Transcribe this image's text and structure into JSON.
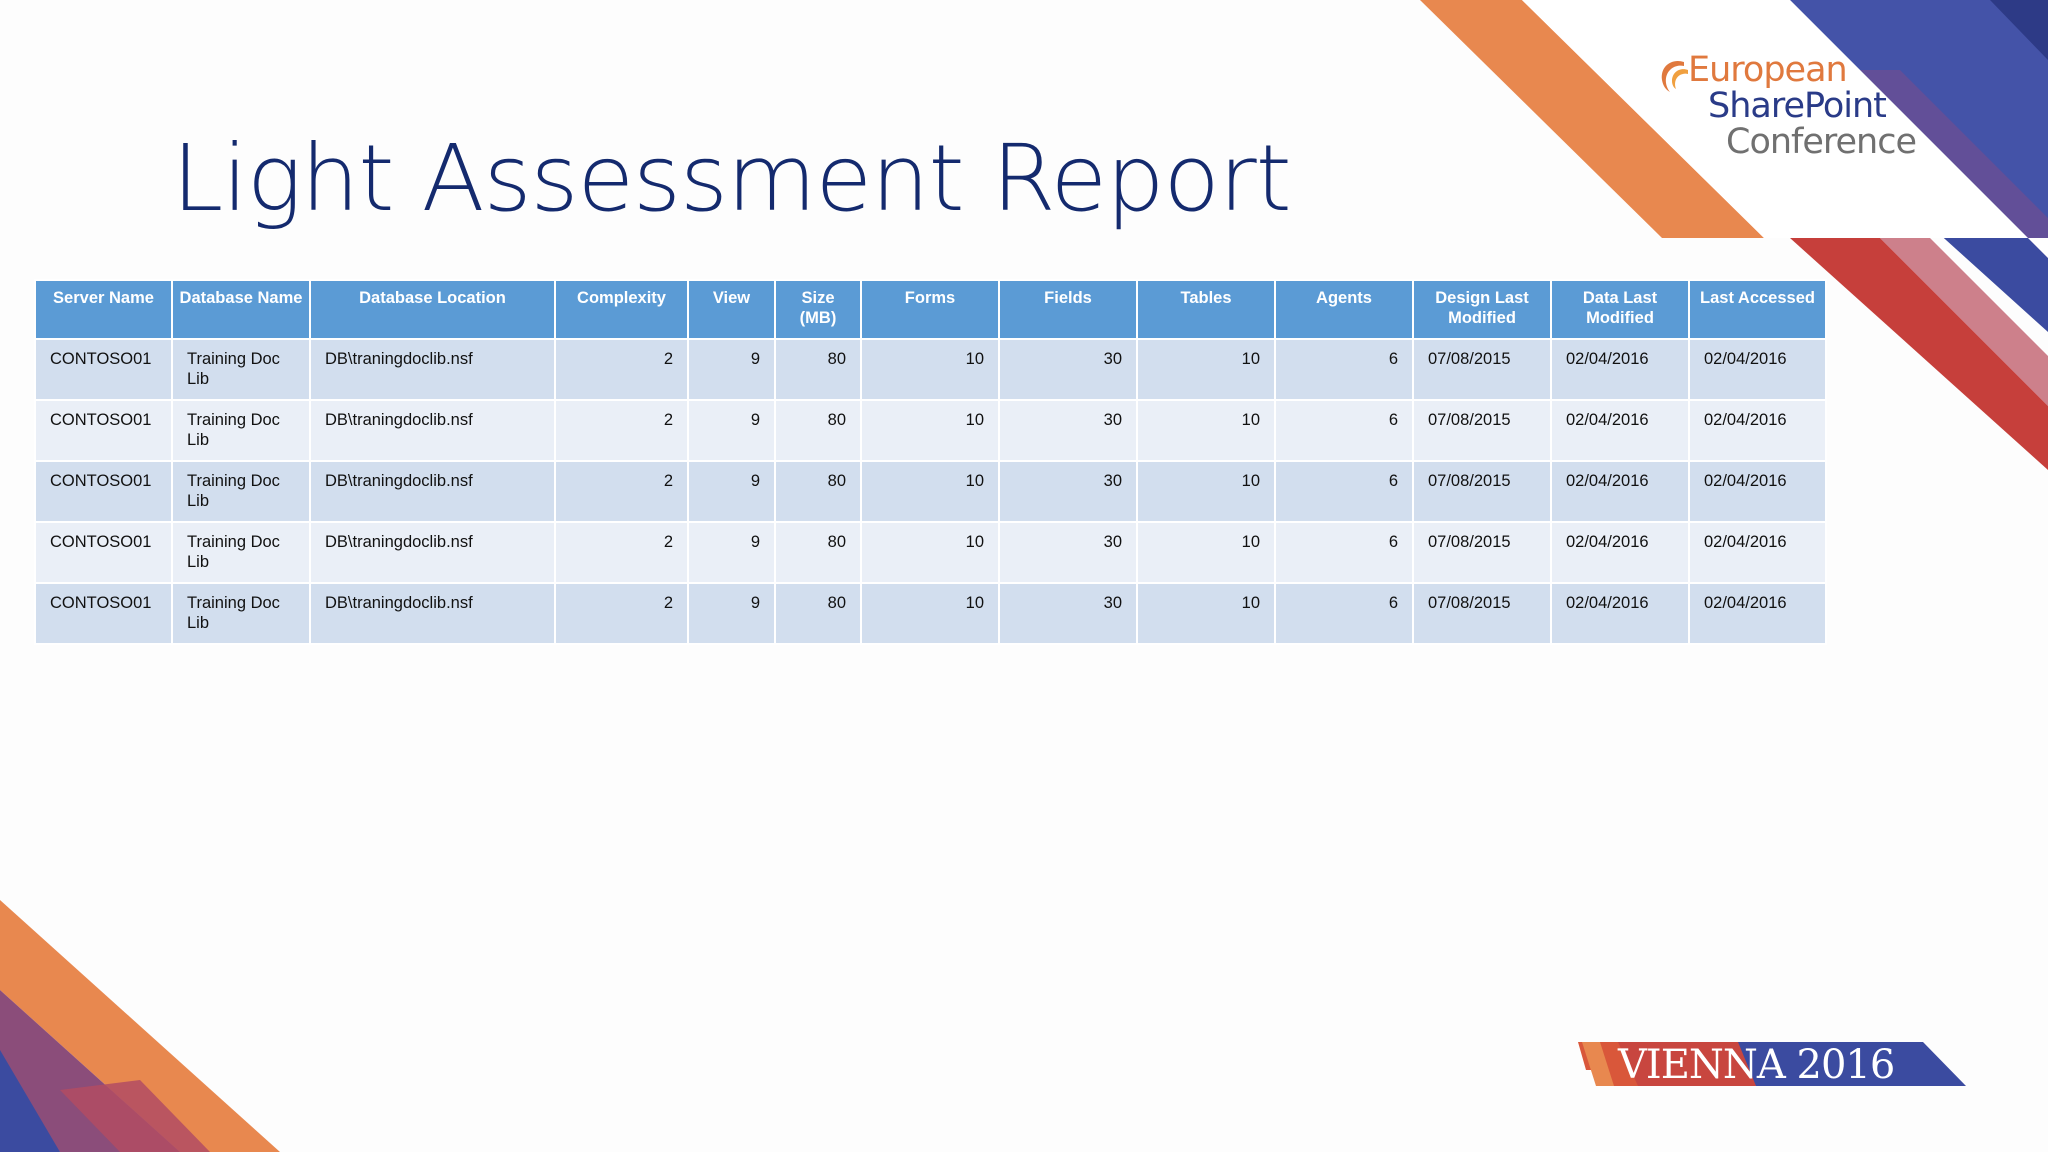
{
  "title": "Light Assessment Report",
  "logo": {
    "line1": "European",
    "line2": "SharePoint",
    "line3": "Conference"
  },
  "banner": "VIENNA 2016",
  "colors": {
    "title": "#142a6e",
    "header_bg": "#5b9bd5",
    "row_odd": "#d2deee",
    "row_even": "#eaeff7",
    "orange": "#e88a50",
    "blue": "#3d4ea3",
    "red": "#c9403a"
  },
  "table": {
    "columns": [
      "Server Name",
      "Database Name",
      "Database Location",
      "Complexity",
      "View",
      "Size (MB)",
      "Forms",
      "Fields",
      "Tables",
      "Agents",
      "Design Last Modified",
      "Data Last Modified",
      "Last Accessed"
    ],
    "rows": [
      [
        "CONTOSO01",
        "Training Doc Lib",
        "DB\\traningdoclib.nsf",
        "2",
        "9",
        "80",
        "10",
        "30",
        "10",
        "6",
        "07/08/2015",
        "02/04/2016",
        "02/04/2016"
      ],
      [
        "CONTOSO01",
        "Training Doc Lib",
        "DB\\traningdoclib.nsf",
        "2",
        "9",
        "80",
        "10",
        "30",
        "10",
        "6",
        "07/08/2015",
        "02/04/2016",
        "02/04/2016"
      ],
      [
        "CONTOSO01",
        "Training Doc Lib",
        "DB\\traningdoclib.nsf",
        "2",
        "9",
        "80",
        "10",
        "30",
        "10",
        "6",
        "07/08/2015",
        "02/04/2016",
        "02/04/2016"
      ],
      [
        "CONTOSO01",
        "Training Doc Lib",
        "DB\\traningdoclib.nsf",
        "2",
        "9",
        "80",
        "10",
        "30",
        "10",
        "6",
        "07/08/2015",
        "02/04/2016",
        "02/04/2016"
      ],
      [
        "CONTOSO01",
        "Training Doc Lib",
        "DB\\traningdoclib.nsf",
        "2",
        "9",
        "80",
        "10",
        "30",
        "10",
        "6",
        "07/08/2015",
        "02/04/2016",
        "02/04/2016"
      ]
    ]
  }
}
